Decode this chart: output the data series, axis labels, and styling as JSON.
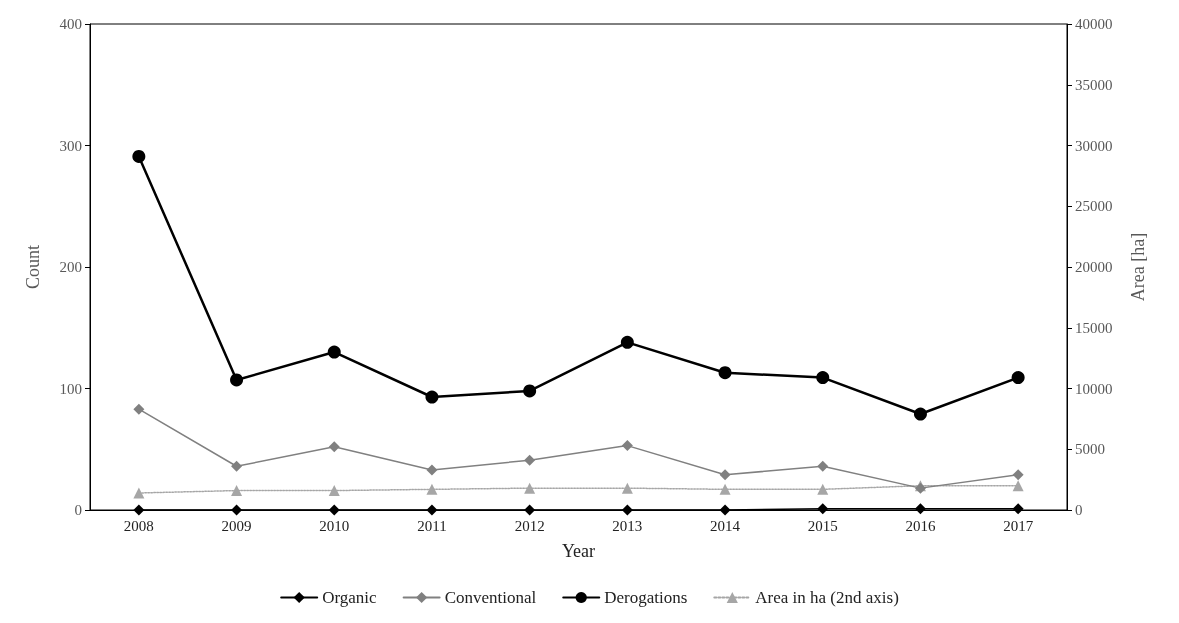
{
  "chart_data": {
    "type": "line",
    "xlabel": "Year",
    "ylabel": "Count",
    "y2label": "Area [ha]",
    "categories": [
      "2008",
      "2009",
      "2010",
      "2011",
      "2012",
      "2013",
      "2014",
      "2015",
      "2016",
      "2017"
    ],
    "series": [
      {
        "name": "Organic",
        "color": "#000000",
        "marker": "diamond",
        "line_style": "solid",
        "values": [
          0,
          0,
          0,
          0,
          0,
          0,
          0,
          1,
          1,
          1
        ]
      },
      {
        "name": "Conventional",
        "color": "#808080",
        "marker": "diamond",
        "line_style": "solid",
        "values": [
          83,
          36,
          52,
          33,
          41,
          53,
          29,
          36,
          18,
          29
        ]
      },
      {
        "name": "Derogations",
        "color": "#000000",
        "marker": "circle",
        "line_style": "solid",
        "values": [
          291,
          107,
          130,
          93,
          98,
          138,
          113,
          109,
          79,
          109
        ]
      },
      {
        "name": "Area in ha (2nd axis)",
        "color": "#a6a6a6",
        "marker": "triangle",
        "line_style": "dotted",
        "axis": "y2",
        "values": [
          1400,
          1600,
          1600,
          1700,
          1800,
          1800,
          1700,
          1700,
          2000,
          2000
        ]
      }
    ],
    "ylim": [
      0,
      400
    ],
    "yticks": [
      0,
      100,
      200,
      300,
      400
    ],
    "y2lim": [
      0,
      40000
    ],
    "y2ticks": [
      0,
      5000,
      10000,
      15000,
      20000,
      25000,
      30000,
      35000,
      40000
    ],
    "grid": false,
    "legend": "bottom"
  }
}
